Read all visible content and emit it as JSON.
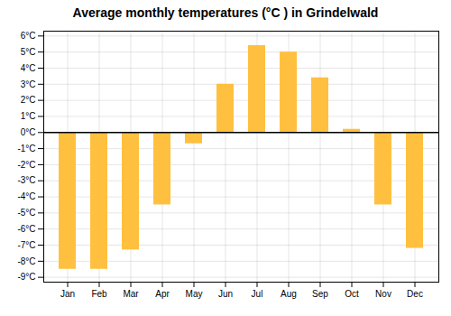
{
  "chart_data": {
    "type": "bar",
    "title": "Average monthly temperatures (°C ) in Grindelwald",
    "categories": [
      "Jan",
      "Feb",
      "Mar",
      "Apr",
      "May",
      "Jun",
      "Jul",
      "Aug",
      "Sep",
      "Oct",
      "Nov",
      "Dec"
    ],
    "values": [
      -8.5,
      -8.5,
      -7.3,
      -4.5,
      -0.7,
      3.0,
      5.4,
      5.0,
      3.4,
      0.2,
      -4.5,
      -7.2
    ],
    "color": "#FFC040",
    "ylim": [
      -9.3,
      6.3
    ],
    "yticks": [
      {
        "value": -9,
        "label": "-9°C"
      },
      {
        "value": -8,
        "label": "-8°C"
      },
      {
        "value": -7,
        "label": "-7°C"
      },
      {
        "value": -6,
        "label": "-6°C"
      },
      {
        "value": -5,
        "label": "-5°C"
      },
      {
        "value": -4,
        "label": "-4°C"
      },
      {
        "value": -3,
        "label": "-3°C"
      },
      {
        "value": -2,
        "label": "-2°C"
      },
      {
        "value": -1,
        "label": "-1°C"
      },
      {
        "value": 0,
        "label": "0°C"
      },
      {
        "value": 1,
        "label": "1°C"
      },
      {
        "value": 2,
        "label": "2°C"
      },
      {
        "value": 3,
        "label": "3°C"
      },
      {
        "value": 4,
        "label": "4°C"
      },
      {
        "value": 5,
        "label": "5°C"
      },
      {
        "value": 6,
        "label": "6°C"
      }
    ],
    "grid": true
  }
}
